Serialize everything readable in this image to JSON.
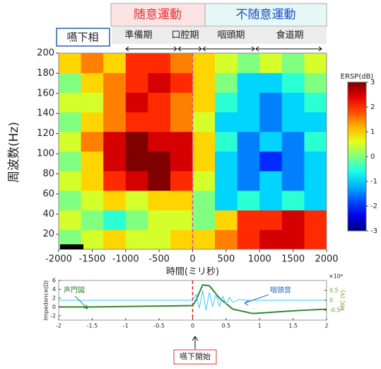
{
  "labels": {
    "voluntary": "随意運動",
    "involuntary": "不随意運動",
    "phase_title": "嚥下相",
    "phases": [
      "準備期",
      "口腔期",
      "咽頭期",
      "食道期"
    ],
    "onset": "嚥下開始"
  },
  "chart_data": [
    {
      "type": "heatmap",
      "ylabel": "周波数(Hz)",
      "xlabel": "時間(ミリ秒)",
      "colorbar_label": "ERSP(dB)",
      "xlim": [
        -2000,
        2000
      ],
      "ylim": [
        5,
        200
      ],
      "xticks": [
        -2000,
        -1500,
        -1000,
        -500,
        0,
        500,
        1000,
        1500,
        2000
      ],
      "yticks": [
        20,
        40,
        60,
        80,
        100,
        120,
        140,
        160,
        180,
        200
      ],
      "xbins": [
        -2000,
        -1667,
        -1333,
        -1000,
        -667,
        -333,
        0,
        333,
        667,
        1000,
        1333,
        1667,
        2000
      ],
      "ybins": [
        5,
        24.5,
        44,
        63.5,
        83,
        102.5,
        122,
        141.5,
        161,
        180.5,
        200
      ],
      "clim": [
        -3,
        3
      ],
      "cticks": [
        -3,
        -2,
        -1,
        0,
        1,
        2,
        3
      ],
      "z": [
        [
          0,
          0.5,
          1,
          0.5,
          0.5,
          1,
          1,
          1.5,
          2,
          2.5,
          2.5,
          2
        ],
        [
          0.5,
          0,
          -0.5,
          0,
          0.5,
          0.5,
          0,
          1,
          2,
          2,
          2.5,
          2
        ],
        [
          0,
          0.5,
          1,
          0.5,
          1,
          1,
          0,
          -1,
          -0.5,
          -1,
          -0.5,
          -1
        ],
        [
          0.5,
          1,
          2,
          2.5,
          3,
          2,
          0.5,
          -1,
          -1.5,
          -1,
          -1.5,
          -1
        ],
        [
          0,
          1,
          2.5,
          3,
          3,
          2.5,
          1,
          -1,
          -1.5,
          -2,
          -1.5,
          -1
        ],
        [
          0.5,
          1.5,
          2.5,
          3,
          2.5,
          2.5,
          1,
          -0.5,
          -1.5,
          -1,
          -1.5,
          -0.5
        ],
        [
          0,
          1,
          1.5,
          2,
          2,
          1.5,
          0.5,
          -1,
          -1,
          -1.5,
          -1,
          -1
        ],
        [
          0.5,
          0.5,
          1.5,
          2.5,
          2,
          1.5,
          1,
          -0.5,
          -1,
          -1.5,
          -1,
          -0.5
        ],
        [
          0,
          1,
          1.5,
          2,
          2.5,
          2,
          1,
          0,
          -1,
          -1,
          -0.5,
          0
        ],
        [
          1,
          1.5,
          1,
          2,
          2,
          1.5,
          1,
          0.5,
          0,
          0.5,
          0,
          0.5
        ]
      ]
    },
    {
      "type": "line",
      "ylabel": "Impedance(Ω)",
      "y2label": "MIC (V)",
      "y2scale": "×10⁴",
      "xlim": [
        -2,
        2
      ],
      "xticks": [
        -2,
        -1.5,
        -1,
        -0.5,
        0,
        0.5,
        1,
        1.5,
        2
      ],
      "ylim": [
        -3,
        6
      ],
      "yticks": [
        -2,
        0,
        2,
        4,
        6
      ],
      "y2lim": [
        -1,
        1
      ],
      "y2ticks": [
        -0.5,
        0,
        0.5
      ],
      "series": [
        {
          "name": "声門図",
          "color": "#2a8a2a",
          "x": [
            -2,
            -1.5,
            -1,
            -0.5,
            0,
            0.05,
            0.15,
            0.25,
            0.4,
            0.6,
            0.9,
            1.2,
            1.6,
            2
          ],
          "values": [
            0,
            0,
            0.1,
            0.2,
            0.3,
            1.5,
            5,
            4.8,
            2,
            -0.5,
            -1.5,
            -1.2,
            -0.8,
            -0.5
          ]
        },
        {
          "name": "咽頭音",
          "color": "#33ccff",
          "axis": "y2",
          "x": [
            -2,
            0,
            0.05,
            0.1,
            0.15,
            0.2,
            0.25,
            0.3,
            0.35,
            0.4,
            0.45,
            0.5,
            0.55,
            0.6,
            0.7,
            0.8,
            2
          ],
          "values": [
            0,
            0,
            0.3,
            -0.4,
            0.5,
            -0.5,
            0.4,
            -0.3,
            0.3,
            -0.3,
            0.2,
            -0.2,
            0.15,
            -0.1,
            0.05,
            0,
            0
          ]
        }
      ]
    }
  ]
}
